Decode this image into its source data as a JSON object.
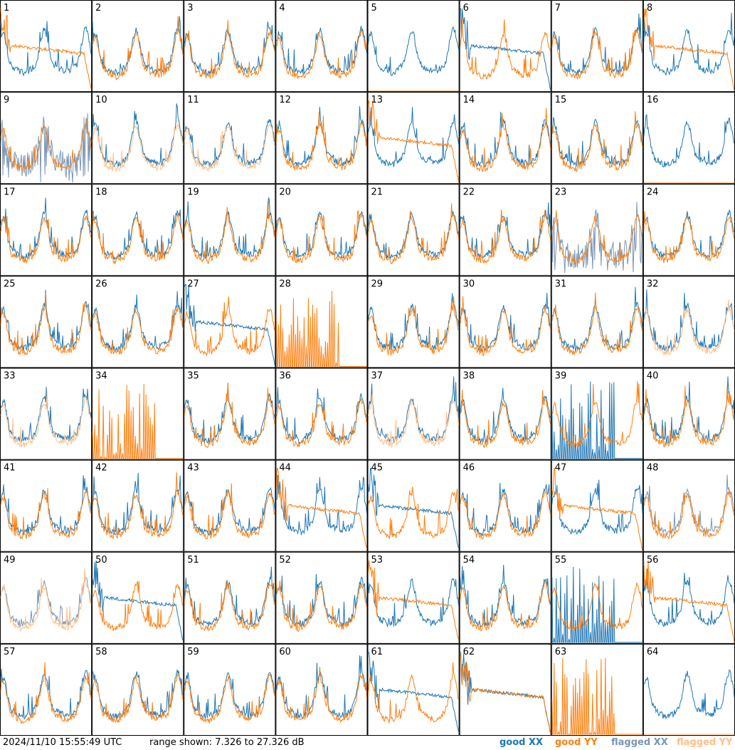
{
  "chart_data": {
    "type": "line",
    "layout": "8x8 small multiples",
    "panels": [
      "1",
      "2",
      "3",
      "4",
      "5",
      "6",
      "7",
      "8",
      "9",
      "10",
      "11",
      "12",
      "13",
      "14",
      "15",
      "16",
      "17",
      "18",
      "19",
      "20",
      "21",
      "22",
      "23",
      "24",
      "25",
      "26",
      "27",
      "28",
      "29",
      "30",
      "31",
      "32",
      "33",
      "34",
      "35",
      "36",
      "37",
      "38",
      "39",
      "40",
      "41",
      "42",
      "43",
      "44",
      "45",
      "46",
      "47",
      "48",
      "49",
      "50",
      "51",
      "52",
      "53",
      "54",
      "55",
      "56",
      "57",
      "58",
      "59",
      "60",
      "61",
      "62",
      "63",
      "64"
    ],
    "ylim": [
      7.326,
      27.326
    ],
    "ylabel_unit": "dB",
    "series": [
      {
        "name": "good XX",
        "color": "#1f77b4"
      },
      {
        "name": "good YY",
        "color": "#ff7f0e"
      },
      {
        "name": "flagged XX",
        "color": "#7a96b5"
      },
      {
        "name": "flagged YY",
        "color": "#ffbf87"
      }
    ],
    "panel_series": {
      "flagged_xx": [
        "9",
        "23",
        "48",
        "49"
      ],
      "flagged_yy": [
        "5",
        "10",
        "11",
        "16",
        "32",
        "33",
        "37",
        "49",
        "64"
      ],
      "spiky_yy": [
        "28",
        "34",
        "63"
      ],
      "spiky_xx": [
        "39",
        "55"
      ],
      "decaying_xx": [
        "6",
        "27",
        "45",
        "50",
        "61",
        "62"
      ],
      "decaying_yy": [
        "1",
        "8",
        "13",
        "44",
        "47",
        "53",
        "56",
        "62"
      ],
      "missing_yy": [
        "5",
        "16",
        "64"
      ],
      "missing_xx": [
        "28",
        "34",
        "63"
      ]
    }
  },
  "footer": {
    "timestamp": "2024/11/10 15:55:49 UTC",
    "range_text": "range shown: 7.326 to 27.326 dB",
    "legend": [
      {
        "label": "good XX",
        "color": "#1f77b4"
      },
      {
        "label": "good YY",
        "color": "#ff7f0e"
      },
      {
        "label": "flagged XX",
        "color": "#7a96b5"
      },
      {
        "label": "flagged YY",
        "color": "#ffbf87"
      }
    ]
  }
}
